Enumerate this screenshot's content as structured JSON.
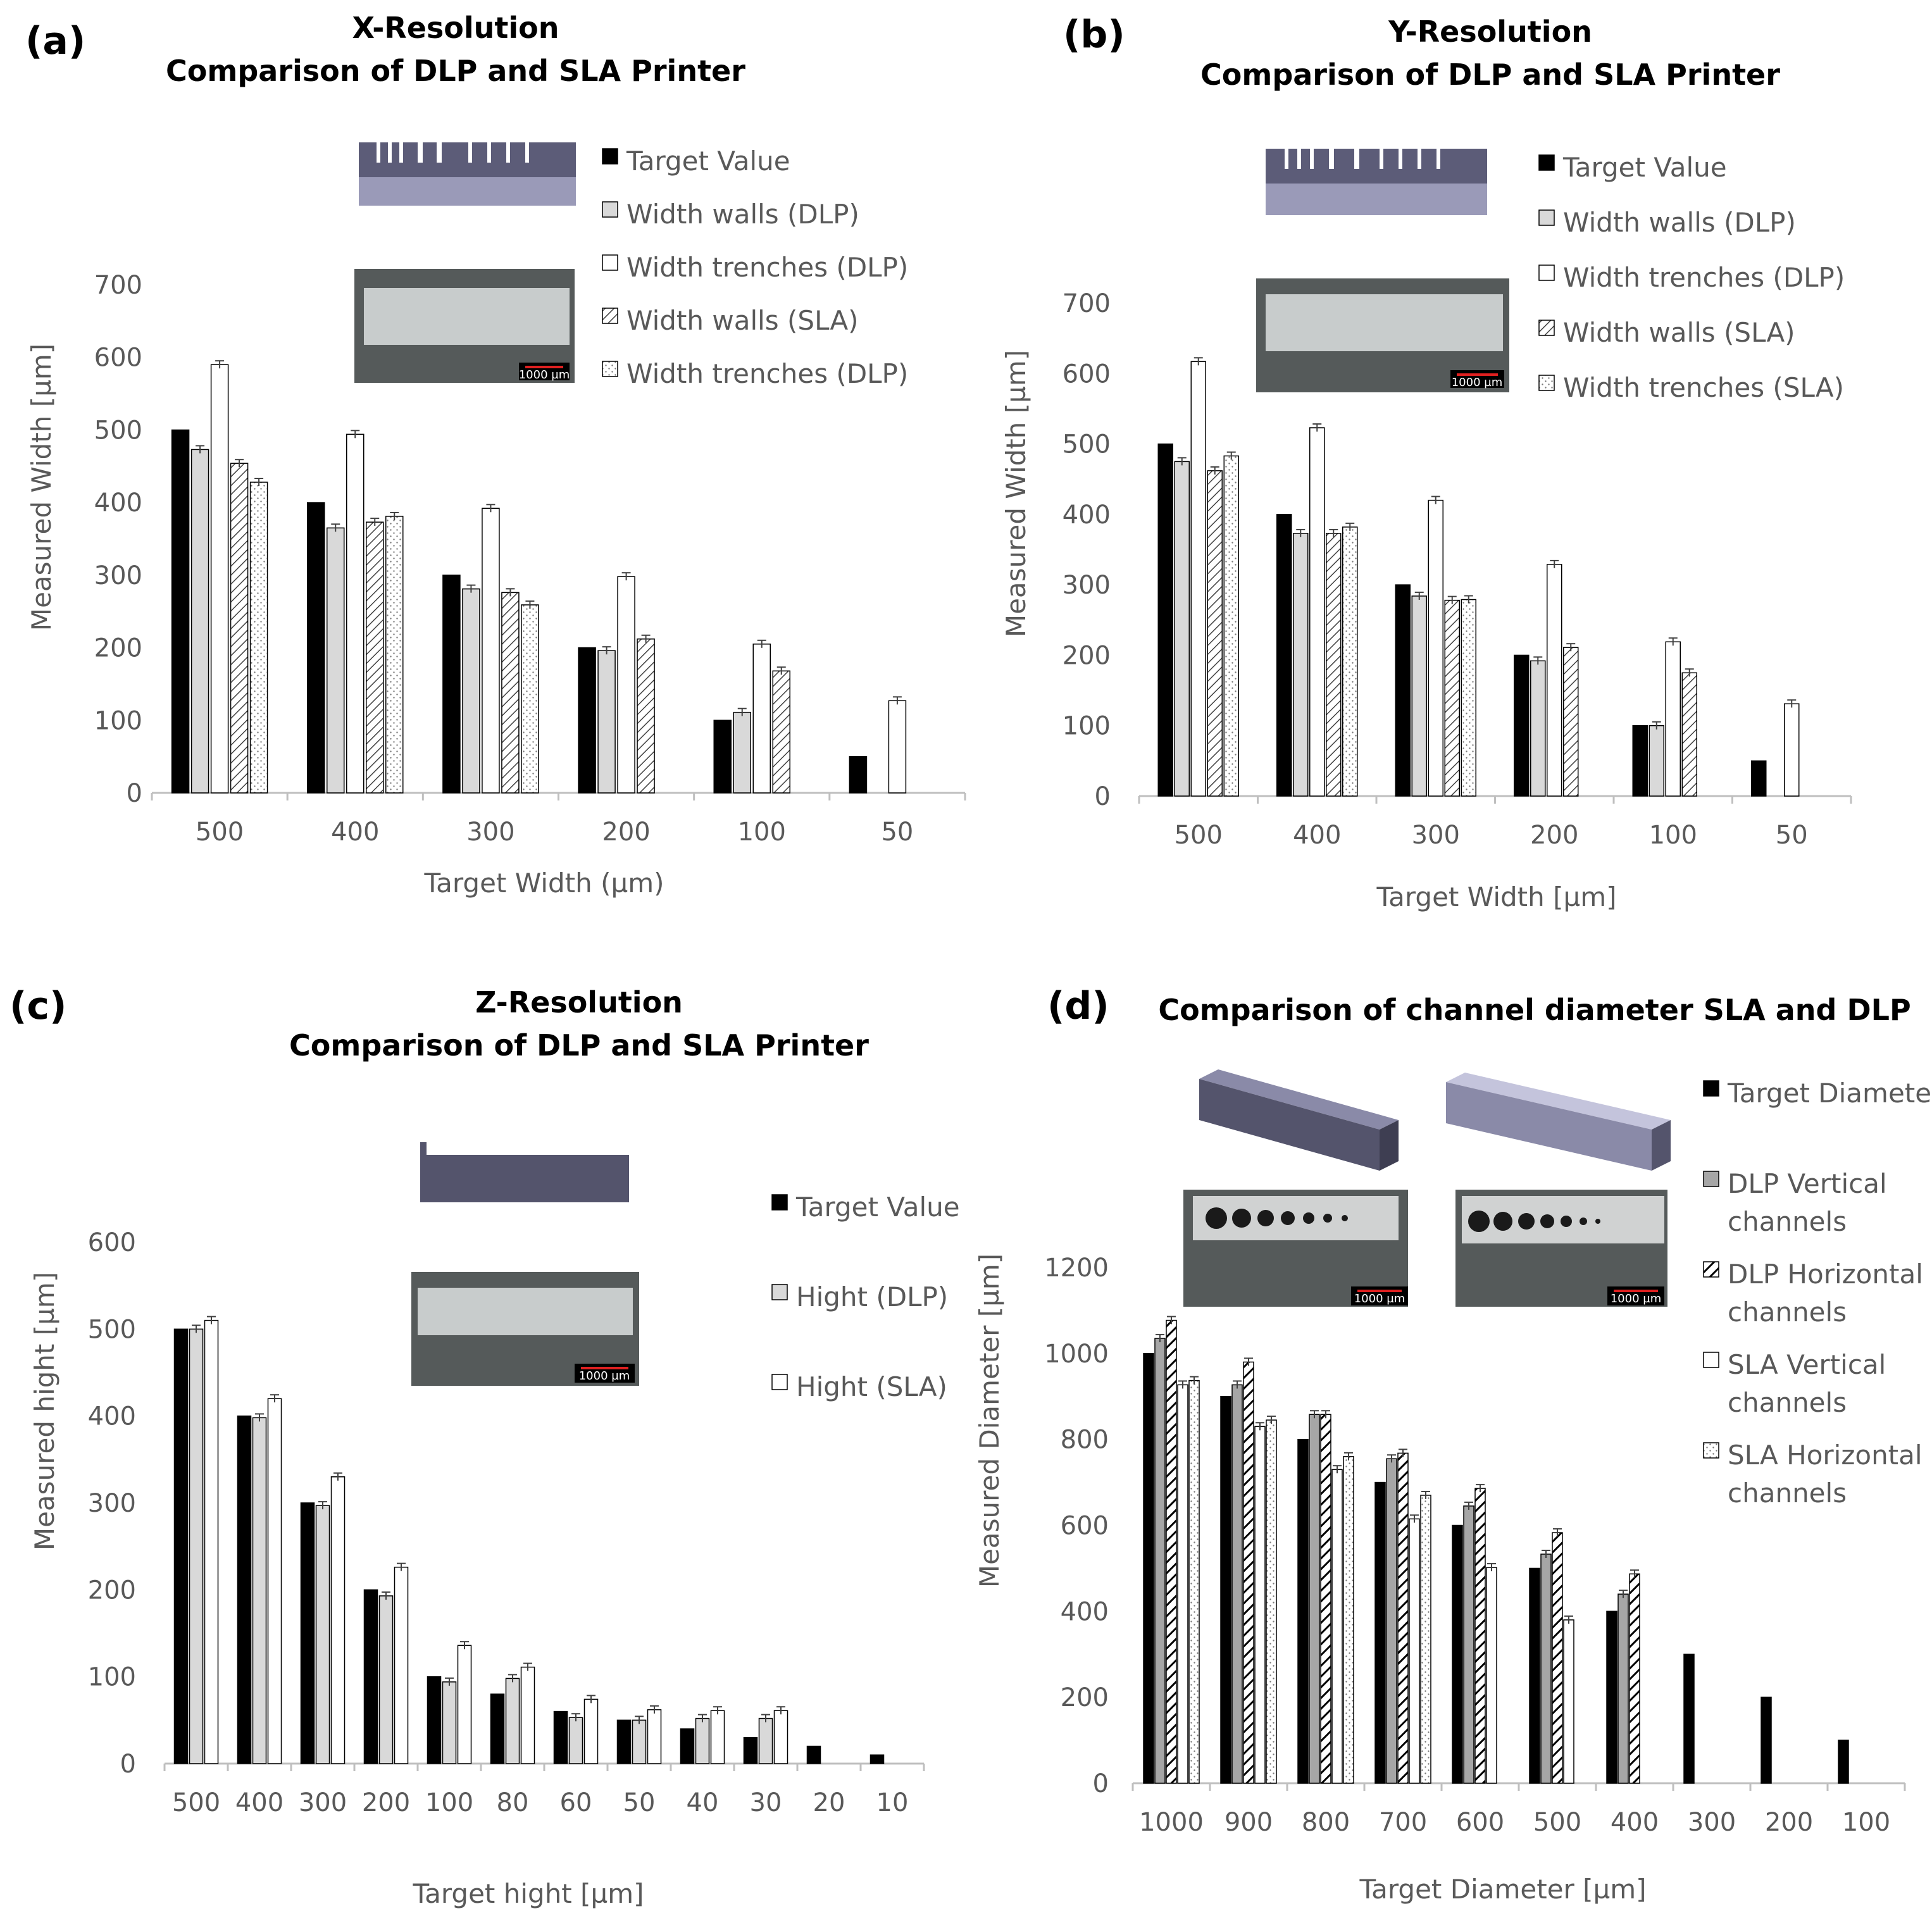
{
  "colors": {
    "target": "#000000",
    "walls_dlp": "#d9d9d9",
    "trenches": "#ffffff",
    "dlp_vertical": "#a6a6a6",
    "hatch": "#404040",
    "axis": "#bfbfbf",
    "text": "#595959"
  },
  "scale_bar_label": "1000 µm",
  "chart_data": [
    {
      "panel": "(a)",
      "type": "bar",
      "title": [
        "X-Resolution",
        "Comparison of DLP and SLA Printer"
      ],
      "xlabel": "Target Width (µm)",
      "ylabel": "Measured Width [µm]",
      "ylim": [
        0,
        700
      ],
      "yticks": [
        0,
        100,
        200,
        300,
        400,
        500,
        600,
        700
      ],
      "categories": [
        "500",
        "400",
        "300",
        "200",
        "100",
        "50"
      ],
      "legend_position": "top-right",
      "series": [
        {
          "name": "Target Value",
          "style": "solid-black",
          "values": [
            500,
            400,
            300,
            200,
            100,
            50
          ]
        },
        {
          "name": "Width walls (DLP)",
          "style": "light-gray",
          "values": [
            473,
            365,
            281,
            196,
            111,
            null
          ]
        },
        {
          "name": "Width trenches (DLP)",
          "style": "white",
          "values": [
            590,
            494,
            392,
            298,
            205,
            127
          ]
        },
        {
          "name": "Width walls (SLA)",
          "style": "hatched",
          "values": [
            454,
            373,
            276,
            212,
            168,
            null
          ]
        },
        {
          "name": "Width trenches (DLP)",
          "style": "dotted",
          "values": [
            428,
            381,
            259,
            null,
            null,
            null
          ]
        }
      ]
    },
    {
      "panel": "(b)",
      "type": "bar",
      "title": [
        "Y-Resolution",
        "Comparison of DLP and SLA Printer"
      ],
      "xlabel": "Target Width [µm]",
      "ylabel": "Measured Width [µm]",
      "ylim": [
        0,
        700
      ],
      "yticks": [
        0,
        100,
        200,
        300,
        400,
        500,
        600,
        700
      ],
      "categories": [
        "500",
        "400",
        "300",
        "200",
        "100",
        "50"
      ],
      "legend_position": "top-right",
      "series": [
        {
          "name": "Target Value",
          "style": "solid-black",
          "values": [
            500,
            400,
            300,
            200,
            100,
            50
          ]
        },
        {
          "name": "Width walls (DLP)",
          "style": "light-gray",
          "values": [
            475,
            373,
            284,
            192,
            100,
            null
          ]
        },
        {
          "name": "Width trenches (DLP)",
          "style": "white",
          "values": [
            617,
            523,
            420,
            329,
            219,
            131
          ]
        },
        {
          "name": "Width walls (SLA)",
          "style": "hatched",
          "values": [
            462,
            373,
            278,
            211,
            175,
            null
          ]
        },
        {
          "name": "Width trenches (SLA)",
          "style": "dotted",
          "values": [
            483,
            382,
            279,
            null,
            null,
            null
          ]
        }
      ]
    },
    {
      "panel": "(c)",
      "type": "bar",
      "title": [
        "Z-Resolution",
        "Comparison of DLP and SLA Printer"
      ],
      "xlabel": "Target hight [µm]",
      "ylabel": "Measured hight [µm]",
      "ylim": [
        0,
        600
      ],
      "yticks": [
        0,
        100,
        200,
        300,
        400,
        500,
        600
      ],
      "categories": [
        "500",
        "400",
        "300",
        "200",
        "100",
        "80",
        "60",
        "50",
        "40",
        "30",
        "20",
        "10"
      ],
      "legend_position": "right",
      "series": [
        {
          "name": "Target Value",
          "style": "solid-black",
          "values": [
            500,
            400,
            300,
            200,
            100,
            80,
            60,
            50,
            40,
            30,
            20,
            10
          ]
        },
        {
          "name": "Hight (DLP)",
          "style": "light-gray",
          "values": [
            500,
            398,
            297,
            193,
            94,
            98,
            53,
            50,
            52,
            52,
            null,
            null
          ]
        },
        {
          "name": "Hight (SLA)",
          "style": "white",
          "values": [
            510,
            420,
            330,
            226,
            136,
            111,
            74,
            62,
            61,
            61,
            null,
            null
          ]
        }
      ]
    },
    {
      "panel": "(d)",
      "type": "bar",
      "title": [
        "Comparison of channel diameter SLA and DLP"
      ],
      "xlabel": "Target Diameter [µm]",
      "ylabel": "Measured Diameter [µm]",
      "ylim": [
        0,
        1200
      ],
      "yticks": [
        0,
        200,
        400,
        600,
        800,
        1000,
        1200
      ],
      "categories": [
        "1000",
        "900",
        "800",
        "700",
        "600",
        "500",
        "400",
        "300",
        "200",
        "100"
      ],
      "legend_position": "right",
      "series": [
        {
          "name": "Target Diameter",
          "style": "solid-black",
          "values": [
            1000,
            900,
            800,
            700,
            600,
            500,
            400,
            300,
            200,
            100
          ]
        },
        {
          "name": "DLP Vertical channels",
          "style": "mid-gray",
          "values": [
            1035,
            927,
            858,
            755,
            645,
            533,
            440,
            null,
            null,
            null
          ]
        },
        {
          "name": "DLP Horizontal channels",
          "style": "hatched-dense",
          "values": [
            1077,
            980,
            858,
            768,
            686,
            583,
            487,
            null,
            null,
            null
          ]
        },
        {
          "name": "SLA Vertical channels",
          "style": "white",
          "values": [
            927,
            830,
            730,
            615,
            502,
            380,
            null,
            null,
            null,
            null
          ]
        },
        {
          "name": "SLA Horizontal channels",
          "style": "dotted",
          "values": [
            937,
            845,
            760,
            670,
            null,
            null,
            null,
            null,
            null,
            null
          ]
        }
      ]
    }
  ]
}
